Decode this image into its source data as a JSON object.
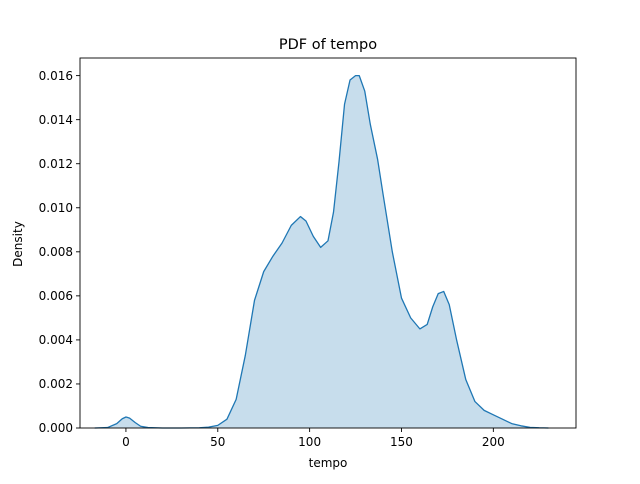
{
  "chart_data": {
    "type": "area",
    "title": "PDF of tempo",
    "xlabel": "tempo",
    "ylabel": "Density",
    "xlim": [
      -25,
      245
    ],
    "ylim": [
      0,
      0.0168
    ],
    "xticks": [
      0,
      50,
      100,
      150,
      200
    ],
    "yticks": [
      0.0,
      0.002,
      0.004,
      0.006,
      0.008,
      0.01,
      0.012,
      0.014,
      0.016
    ],
    "ytick_labels": [
      "0.000",
      "0.002",
      "0.004",
      "0.006",
      "0.008",
      "0.010",
      "0.012",
      "0.014",
      "0.016"
    ],
    "grid": false,
    "colors": {
      "line": "#1f77b4",
      "fill": "#1f77b4",
      "axes": "#000000"
    },
    "series": [
      {
        "x": [
          -17,
          -10,
          -5,
          -2,
          0,
          2,
          5,
          8,
          12,
          20,
          30,
          40,
          45,
          50,
          55,
          60,
          65,
          70,
          75,
          80,
          85,
          90,
          95,
          98,
          102,
          106,
          110,
          113,
          116,
          119,
          122,
          125,
          127,
          130,
          133,
          137,
          140,
          145,
          150,
          155,
          160,
          164,
          167,
          170,
          173,
          176,
          180,
          185,
          190,
          195,
          200,
          205,
          210,
          215,
          220,
          225,
          230
        ],
        "values": [
          0.0,
          2e-05,
          0.0002,
          0.00042,
          0.0005,
          0.00045,
          0.00025,
          8e-05,
          2e-05,
          0.0,
          0.0,
          1e-05,
          4e-05,
          0.00012,
          0.0004,
          0.0013,
          0.0033,
          0.0058,
          0.0071,
          0.0078,
          0.0084,
          0.0092,
          0.0096,
          0.0094,
          0.0087,
          0.0082,
          0.0085,
          0.0098,
          0.0121,
          0.0147,
          0.0158,
          0.016,
          0.016,
          0.0153,
          0.0138,
          0.0122,
          0.0106,
          0.008,
          0.0059,
          0.005,
          0.0045,
          0.0047,
          0.0055,
          0.0061,
          0.0062,
          0.0056,
          0.004,
          0.0022,
          0.0012,
          0.0008,
          0.0006,
          0.0004,
          0.0002,
          0.0001,
          3e-05,
          1e-05,
          0.0
        ]
      }
    ]
  }
}
